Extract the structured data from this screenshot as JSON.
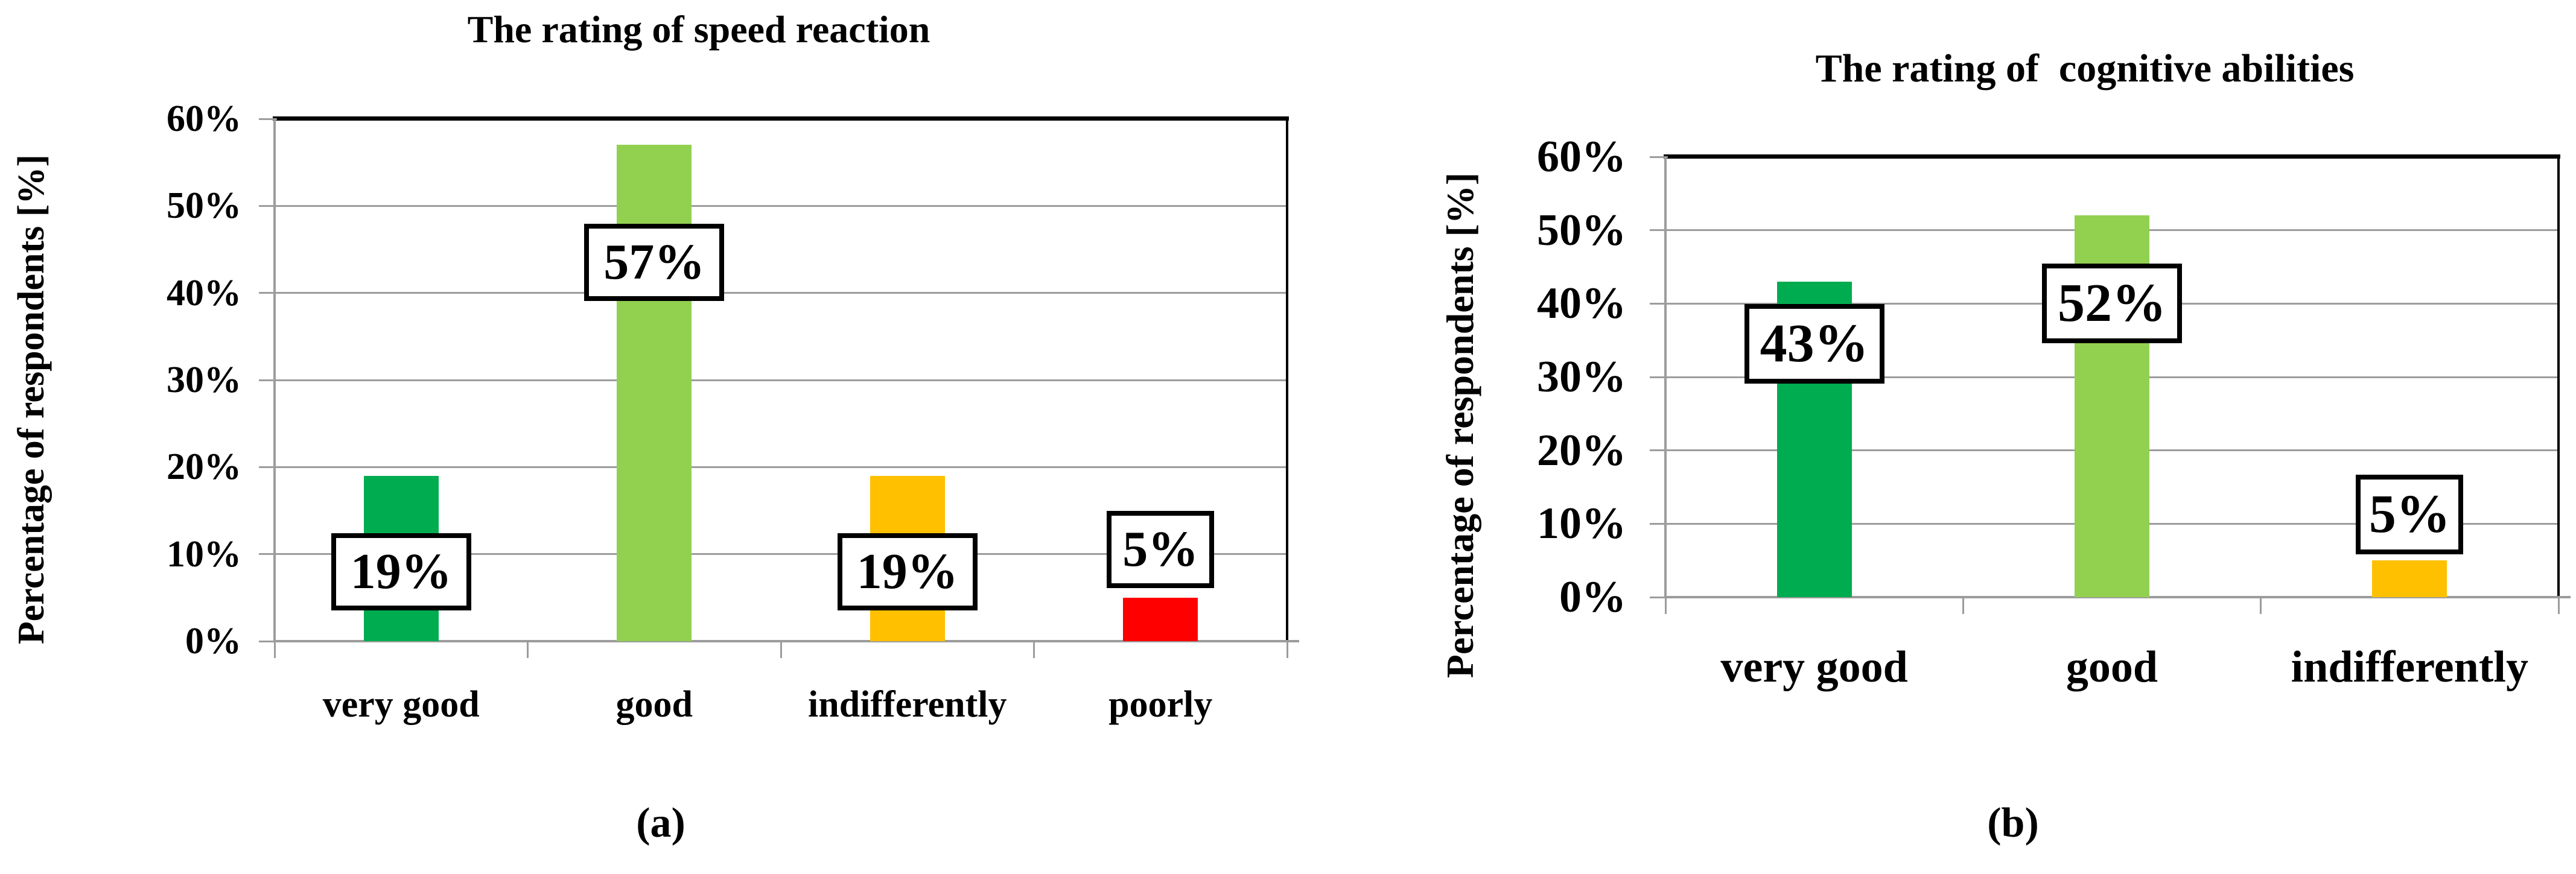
{
  "figure": {
    "background": "#FFFFFF",
    "captions": [
      "(a)",
      "(b)"
    ]
  },
  "chart_data": [
    {
      "type": "bar",
      "panel": "a",
      "title": "The rating of speed reaction",
      "ylabel": "Percentage of respondents [%]",
      "xlabel": "",
      "categories": [
        "very good",
        "good",
        "indifferently",
        "poorly"
      ],
      "values": [
        19,
        57,
        19,
        5
      ],
      "value_labels": [
        "19%",
        "57%",
        "19%",
        "5%"
      ],
      "bar_colors": [
        "#00AC50",
        "#92D050",
        "#FFC000",
        "#FF0000"
      ],
      "ylim": [
        0,
        60
      ],
      "y_tick_step": 10,
      "y_tick_labels": [
        "0%",
        "10%",
        "20%",
        "30%",
        "40%",
        "50%",
        "60%"
      ],
      "grid": true,
      "grid_color": "#9C9C9C",
      "frame_color": "#000000",
      "data_label_box": {
        "border_color": "#000000",
        "background": "#FFFFFF"
      },
      "legend": false
    },
    {
      "type": "bar",
      "panel": "b",
      "title": "The rating of  cognitive abilities",
      "ylabel": "Percentage of respondents [%]",
      "xlabel": "",
      "categories": [
        "very good",
        "good",
        "indifferently"
      ],
      "values": [
        43,
        52,
        5
      ],
      "value_labels": [
        "43%",
        "52%",
        "5%"
      ],
      "bar_colors": [
        "#00AC50",
        "#92D050",
        "#FFC000"
      ],
      "ylim": [
        0,
        60
      ],
      "y_tick_step": 10,
      "y_tick_labels": [
        "0%",
        "10%",
        "20%",
        "30%",
        "40%",
        "50%",
        "60%"
      ],
      "grid": true,
      "grid_color": "#9C9C9C",
      "frame_color": "#000000",
      "data_label_box": {
        "border_color": "#000000",
        "background": "#FFFFFF"
      },
      "legend": false
    }
  ]
}
